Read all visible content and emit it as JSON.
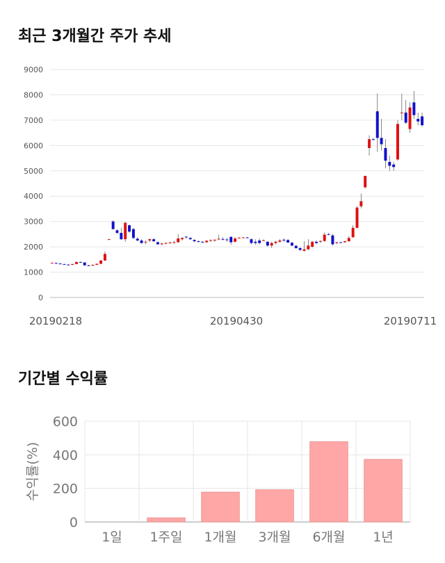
{
  "titles": {
    "price_chart": "최근 3개월간 주가 추세",
    "returns_chart": "기간별 수익률"
  },
  "colors": {
    "up": "#dd1111",
    "down": "#1111cc",
    "bar": "#ffa6a6",
    "bar_edge": "#e88b8b"
  },
  "chart_data": [
    {
      "type": "candlestick",
      "title": "",
      "x_ticks": [
        "20190218",
        "20190430",
        "20190711"
      ],
      "y_ticks": [
        0,
        1000,
        2000,
        3000,
        4000,
        5000,
        6000,
        7000,
        8000,
        9000
      ],
      "ylim": [
        0,
        9000
      ],
      "grid": true,
      "legend": "none",
      "candles": [
        [
          1370,
          1380,
          1360,
          1370
        ],
        [
          1360,
          1380,
          1340,
          1350
        ],
        [
          1340,
          1360,
          1320,
          1330
        ],
        [
          1320,
          1330,
          1290,
          1300
        ],
        [
          1300,
          1310,
          1270,
          1280
        ],
        [
          1290,
          1330,
          1280,
          1320
        ],
        [
          1320,
          1420,
          1310,
          1400
        ],
        [
          1400,
          1420,
          1370,
          1380
        ],
        [
          1380,
          1400,
          1250,
          1270
        ],
        [
          1270,
          1290,
          1240,
          1260
        ],
        [
          1260,
          1300,
          1240,
          1290
        ],
        [
          1290,
          1340,
          1280,
          1330
        ],
        [
          1330,
          1480,
          1320,
          1460
        ],
        [
          1460,
          1820,
          1440,
          1720
        ],
        [
          2300,
          2320,
          2280,
          2300
        ],
        [
          3000,
          3050,
          2680,
          2700
        ],
        [
          2650,
          2700,
          2500,
          2550
        ],
        [
          2550,
          2750,
          2280,
          2300
        ],
        [
          2300,
          2980,
          2200,
          2950
        ],
        [
          2850,
          2880,
          2550,
          2600
        ],
        [
          2700,
          2750,
          2300,
          2350
        ],
        [
          2320,
          2380,
          2220,
          2250
        ],
        [
          2250,
          2300,
          2120,
          2150
        ],
        [
          2180,
          2250,
          2100,
          2200
        ],
        [
          2250,
          2320,
          2180,
          2300
        ],
        [
          2300,
          2350,
          2200,
          2220
        ],
        [
          2180,
          2220,
          2080,
          2100
        ],
        [
          2100,
          2160,
          2070,
          2130
        ],
        [
          2130,
          2180,
          2100,
          2150
        ],
        [
          2150,
          2200,
          2120,
          2170
        ],
        [
          2170,
          2240,
          2130,
          2180
        ],
        [
          2180,
          2500,
          2160,
          2330
        ],
        [
          2300,
          2380,
          2250,
          2350
        ],
        [
          2400,
          2430,
          2320,
          2380
        ],
        [
          2350,
          2380,
          2270,
          2300
        ],
        [
          2270,
          2300,
          2180,
          2220
        ],
        [
          2220,
          2250,
          2170,
          2200
        ],
        [
          2200,
          2230,
          2150,
          2180
        ],
        [
          2180,
          2260,
          2160,
          2240
        ],
        [
          2240,
          2300,
          2200,
          2260
        ],
        [
          2250,
          2290,
          2200,
          2280
        ],
        [
          2300,
          2480,
          2260,
          2320
        ],
        [
          2310,
          2380,
          2250,
          2290
        ],
        [
          2290,
          2350,
          2200,
          2270
        ],
        [
          2390,
          2420,
          2080,
          2180
        ],
        [
          2200,
          2380,
          2180,
          2330
        ],
        [
          2360,
          2380,
          2340,
          2360
        ],
        [
          2370,
          2390,
          2350,
          2370
        ],
        [
          2370,
          2390,
          2340,
          2360
        ],
        [
          2300,
          2340,
          2100,
          2150
        ],
        [
          2200,
          2300,
          2080,
          2150
        ],
        [
          2250,
          2330,
          2100,
          2150
        ],
        [
          2250,
          2290,
          2220,
          2260
        ],
        [
          2200,
          2230,
          2000,
          2050
        ],
        [
          2050,
          2200,
          1950,
          2150
        ],
        [
          2150,
          2240,
          2100,
          2200
        ],
        [
          2200,
          2300,
          2170,
          2250
        ],
        [
          2280,
          2330,
          2200,
          2250
        ],
        [
          2270,
          2300,
          2150,
          2170
        ],
        [
          2160,
          2200,
          2030,
          2050
        ],
        [
          2040,
          2080,
          1920,
          1950
        ],
        [
          1950,
          1980,
          1830,
          1880
        ],
        [
          1840,
          2220,
          1820,
          1900
        ],
        [
          1900,
          2300,
          1880,
          2050
        ],
        [
          2000,
          2230,
          1980,
          2200
        ],
        [
          2200,
          2250,
          2100,
          2150
        ],
        [
          2200,
          2260,
          2150,
          2230
        ],
        [
          2230,
          2560,
          2200,
          2480
        ],
        [
          2500,
          2550,
          2460,
          2480
        ],
        [
          2450,
          2510,
          2050,
          2100
        ],
        [
          2150,
          2200,
          2100,
          2180
        ],
        [
          2180,
          2200,
          2150,
          2170
        ],
        [
          2180,
          2240,
          2160,
          2220
        ],
        [
          2220,
          2420,
          2200,
          2350
        ],
        [
          2380,
          2850,
          2350,
          2750
        ],
        [
          2750,
          3600,
          2720,
          3550
        ],
        [
          3600,
          4100,
          3520,
          3800
        ],
        [
          4350,
          4800,
          4300,
          4800
        ],
        [
          5900,
          6400,
          5600,
          6250
        ],
        [
          6250,
          6300,
          6200,
          6220
        ],
        [
          7350,
          8050,
          5750,
          6300
        ],
        [
          6300,
          7050,
          5800,
          6050
        ],
        [
          5900,
          6250,
          5100,
          5400
        ],
        [
          5350,
          5600,
          5000,
          5200
        ],
        [
          5250,
          5350,
          5000,
          5150
        ],
        [
          5450,
          7000,
          5400,
          6850
        ],
        [
          7300,
          8050,
          7000,
          7300
        ],
        [
          7300,
          7800,
          6850,
          6900
        ],
        [
          6650,
          7700,
          6500,
          7500
        ],
        [
          7700,
          8150,
          7050,
          7200
        ],
        [
          7050,
          7300,
          6800,
          6950
        ],
        [
          7150,
          7300,
          6750,
          6800
        ]
      ]
    },
    {
      "type": "bar",
      "title": "",
      "categories": [
        "1일",
        "1주일",
        "1개월",
        "3개월",
        "6개월",
        "1년"
      ],
      "values": [
        0,
        25,
        178,
        192,
        478,
        373
      ],
      "xlabel": "",
      "ylabel": "수익률(%)",
      "ylim": [
        0,
        600
      ],
      "y_ticks": [
        0,
        200,
        400,
        600
      ],
      "grid": true,
      "legend": "none"
    }
  ]
}
